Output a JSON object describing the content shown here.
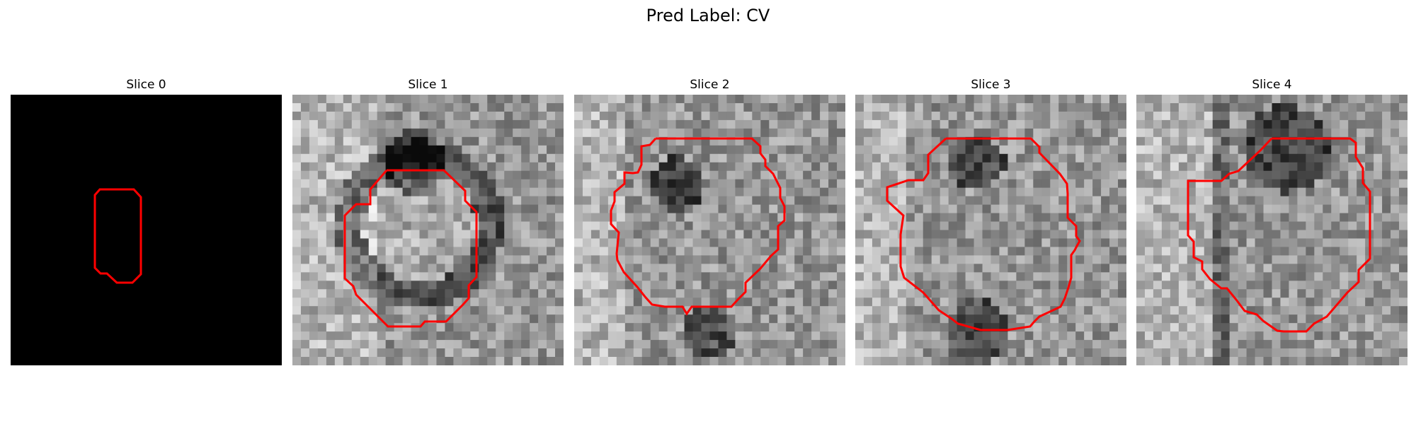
{
  "figure": {
    "title": "Pred Label: CV"
  },
  "colors": {
    "contour": "#ff0000",
    "background": "#000000"
  },
  "panels": [
    {
      "title": "Slice 0",
      "image": "black-mri-slice-with-red-contour"
    },
    {
      "title": "Slice 1",
      "image": "grayscale-mri-slice-with-red-contour"
    },
    {
      "title": "Slice 2",
      "image": "grayscale-mri-slice-with-red-contour"
    },
    {
      "title": "Slice 3",
      "image": "grayscale-mri-slice-with-red-contour"
    },
    {
      "title": "Slice 4",
      "image": "grayscale-mri-slice-with-red-contour"
    }
  ]
}
